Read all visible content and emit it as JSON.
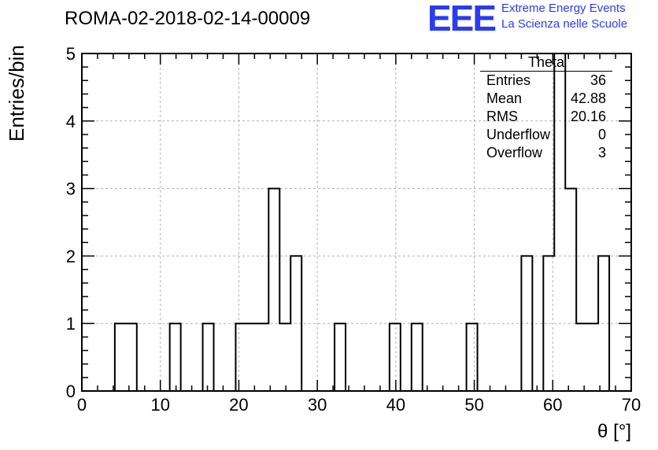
{
  "header": {
    "run_title": "ROMA-02-2018-02-14-00009",
    "logo_text": "EEE",
    "logo_line1": "Extreme Energy Events",
    "logo_line2": "La Scienza nelle Scuole",
    "logo_color": "#2a3cf0"
  },
  "stats_box": {
    "name": "Theta",
    "rows": [
      {
        "label": "Entries",
        "value": "36"
      },
      {
        "label": "Mean",
        "value": "42.88"
      },
      {
        "label": "RMS",
        "value": "20.16"
      },
      {
        "label": "Underflow",
        "value": "0"
      },
      {
        "label": "Overflow",
        "value": "3"
      }
    ]
  },
  "chart_data": {
    "type": "bar",
    "style": "step-histogram",
    "xlabel": "θ [°]",
    "ylabel": "Entries/bin",
    "xlim": [
      0,
      70
    ],
    "ylim": [
      0,
      5
    ],
    "xticks": [
      0,
      10,
      20,
      30,
      40,
      50,
      60,
      70
    ],
    "yticks": [
      0,
      1,
      2,
      3,
      4,
      5
    ],
    "grid": true,
    "bin_width": 1.4,
    "bins": [
      {
        "x": 4.2,
        "count": 1
      },
      {
        "x": 5.6,
        "count": 1
      },
      {
        "x": 11.2,
        "count": 1
      },
      {
        "x": 15.4,
        "count": 1
      },
      {
        "x": 19.6,
        "count": 1
      },
      {
        "x": 21.0,
        "count": 1
      },
      {
        "x": 22.4,
        "count": 1
      },
      {
        "x": 23.8,
        "count": 3
      },
      {
        "x": 25.2,
        "count": 1
      },
      {
        "x": 26.6,
        "count": 2
      },
      {
        "x": 32.2,
        "count": 1
      },
      {
        "x": 39.2,
        "count": 1
      },
      {
        "x": 42.0,
        "count": 1
      },
      {
        "x": 49.0,
        "count": 1
      },
      {
        "x": 56.0,
        "count": 2
      },
      {
        "x": 58.8,
        "count": 2
      },
      {
        "x": 60.2,
        "count": 5
      },
      {
        "x": 61.6,
        "count": 3
      },
      {
        "x": 63.0,
        "count": 1
      },
      {
        "x": 64.4,
        "count": 1
      },
      {
        "x": 65.8,
        "count": 2
      }
    ],
    "line_color": "#000000",
    "grid_color": "#b0b0b0"
  }
}
